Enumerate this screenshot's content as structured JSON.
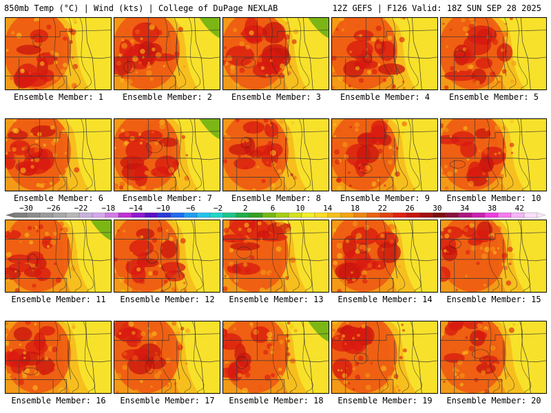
{
  "header": {
    "left_title": "850mb Temp (°C) | Wind (kts) | College of DuPage NEXLAB",
    "right_title": "12Z GEFS | F126 Valid: 18Z SUN SEP 28 2025"
  },
  "members": [
    {
      "label": "Ensemble Member: 1"
    },
    {
      "label": "Ensemble Member: 2"
    },
    {
      "label": "Ensemble Member: 3"
    },
    {
      "label": "Ensemble Member: 4"
    },
    {
      "label": "Ensemble Member: 5"
    },
    {
      "label": "Ensemble Member: 6"
    },
    {
      "label": "Ensemble Member: 7"
    },
    {
      "label": "Ensemble Member: 8"
    },
    {
      "label": "Ensemble Member: 9"
    },
    {
      "label": "Ensemble Member: 10"
    },
    {
      "label": "Ensemble Member: 11"
    },
    {
      "label": "Ensemble Member: 12"
    },
    {
      "label": "Ensemble Member: 13"
    },
    {
      "label": "Ensemble Member: 14"
    },
    {
      "label": "Ensemble Member: 15"
    },
    {
      "label": "Ensemble Member: 16"
    },
    {
      "label": "Ensemble Member: 17"
    },
    {
      "label": "Ensemble Member: 18"
    },
    {
      "label": "Ensemble Member: 19"
    },
    {
      "label": "Ensemble Member: 20"
    }
  ],
  "colorbar": {
    "tick_labels": [
      "−30",
      "−26",
      "−22",
      "−18",
      "−14",
      "−10",
      "−6",
      "−2",
      "2",
      "6",
      "10",
      "14",
      "18",
      "22",
      "26",
      "30",
      "34",
      "38",
      "42"
    ],
    "colors": [
      "#7f7f7f",
      "#8c8c8c",
      "#9a9a9a",
      "#a8a8a8",
      "#b7b7b7",
      "#c6b3dc",
      "#d7a6ec",
      "#d27ae6",
      "#bf2fd6",
      "#8e1ad0",
      "#5a10c4",
      "#2a3cd8",
      "#1f6af0",
      "#1f9df0",
      "#24c3ea",
      "#20d6c6",
      "#1ec48a",
      "#1eae4a",
      "#35a020",
      "#74b812",
      "#a6ce14",
      "#d2e21e",
      "#f2ee28",
      "#fadc22",
      "#f6c018",
      "#f2a412",
      "#ee8410",
      "#e8620e",
      "#e2420e",
      "#dc220e",
      "#c8140e",
      "#a40e0e",
      "#7c0a0c",
      "#8a0e3a",
      "#ac1680",
      "#cc20b0",
      "#ee3ce0",
      "#f67af0",
      "#f8b4f8",
      "#fae0fa"
    ]
  },
  "palette": {
    "hot": "#d81a10",
    "warm": "#ee5a12",
    "orange": "#f49a16",
    "gold": "#f7bf1e",
    "yellow": "#f8e12a",
    "green": "#7cb614",
    "lines": "#3a3a3a"
  }
}
